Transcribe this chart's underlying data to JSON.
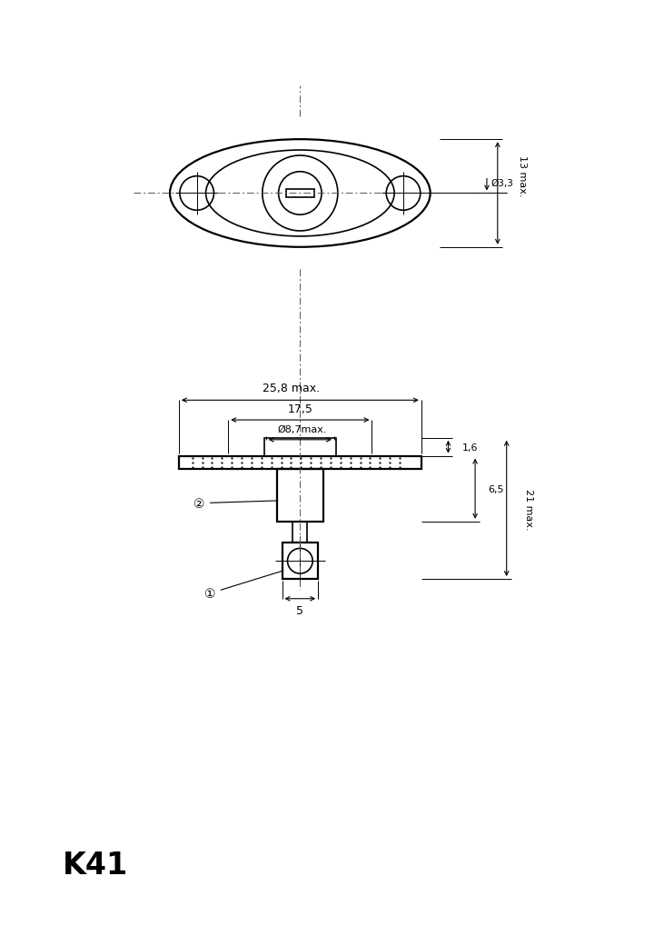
{
  "title": "K41",
  "bg_color": "#ffffff",
  "line_color": "#000000",
  "fig_width": 7.2,
  "fig_height": 10.2,
  "dpi": 100,
  "annotations": {
    "dim_13_max": "13 max.",
    "dim_3_3": "Ø3,3",
    "dim_25_8": "25,8 max.",
    "dim_17_5": "17,5",
    "dim_8_7": "Ø8,7max.",
    "dim_1_6": "1,6",
    "dim_6_5": "6,5",
    "dim_21": "21 max.",
    "dim_5": "5",
    "label_1": "①",
    "label_2": "②"
  }
}
